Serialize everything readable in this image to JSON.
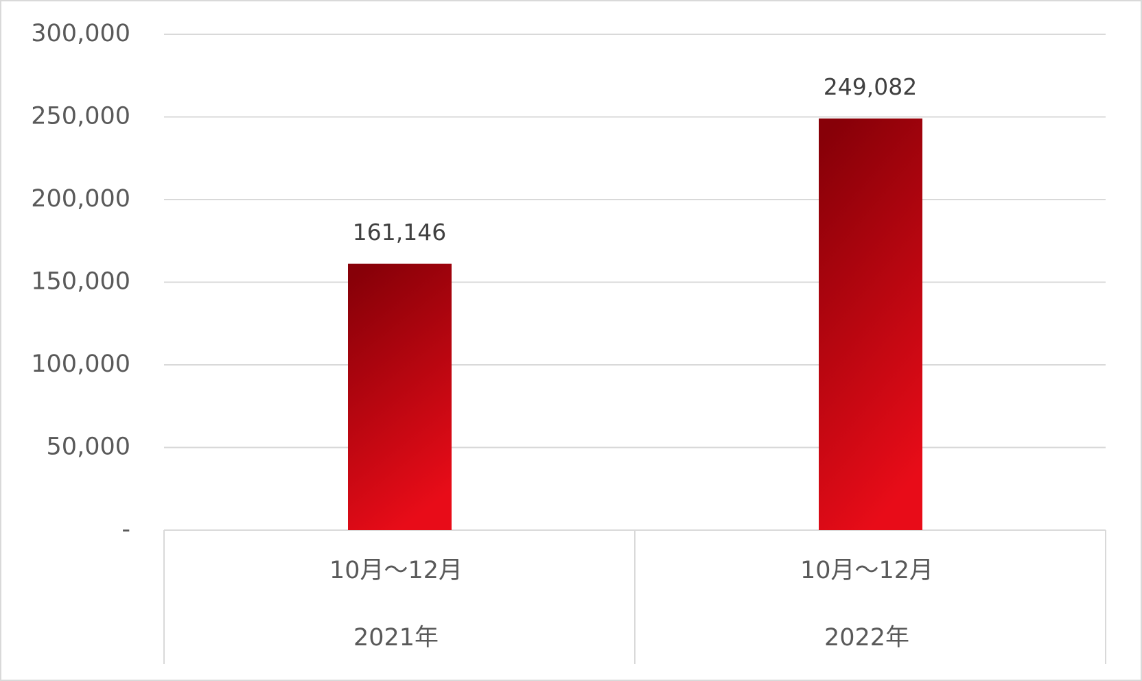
{
  "chart_data": {
    "type": "bar",
    "categories": [
      "10月～12月",
      "10月～12月"
    ],
    "category_groups": [
      "2021年",
      "2022年"
    ],
    "values": [
      161146,
      249082
    ],
    "value_labels": [
      "161,146",
      "249,082"
    ],
    "color": "#c80811",
    "ylim": [
      0,
      300000
    ],
    "yticks": [
      {
        "value": 0,
        "label": "-"
      },
      {
        "value": 50000,
        "label": "50,000"
      },
      {
        "value": 100000,
        "label": "100,000"
      },
      {
        "value": 150000,
        "label": "150,000"
      },
      {
        "value": 200000,
        "label": "200,000"
      },
      {
        "value": 250000,
        "label": "250,000"
      },
      {
        "value": 300000,
        "label": "300,000"
      }
    ],
    "grid": true
  }
}
